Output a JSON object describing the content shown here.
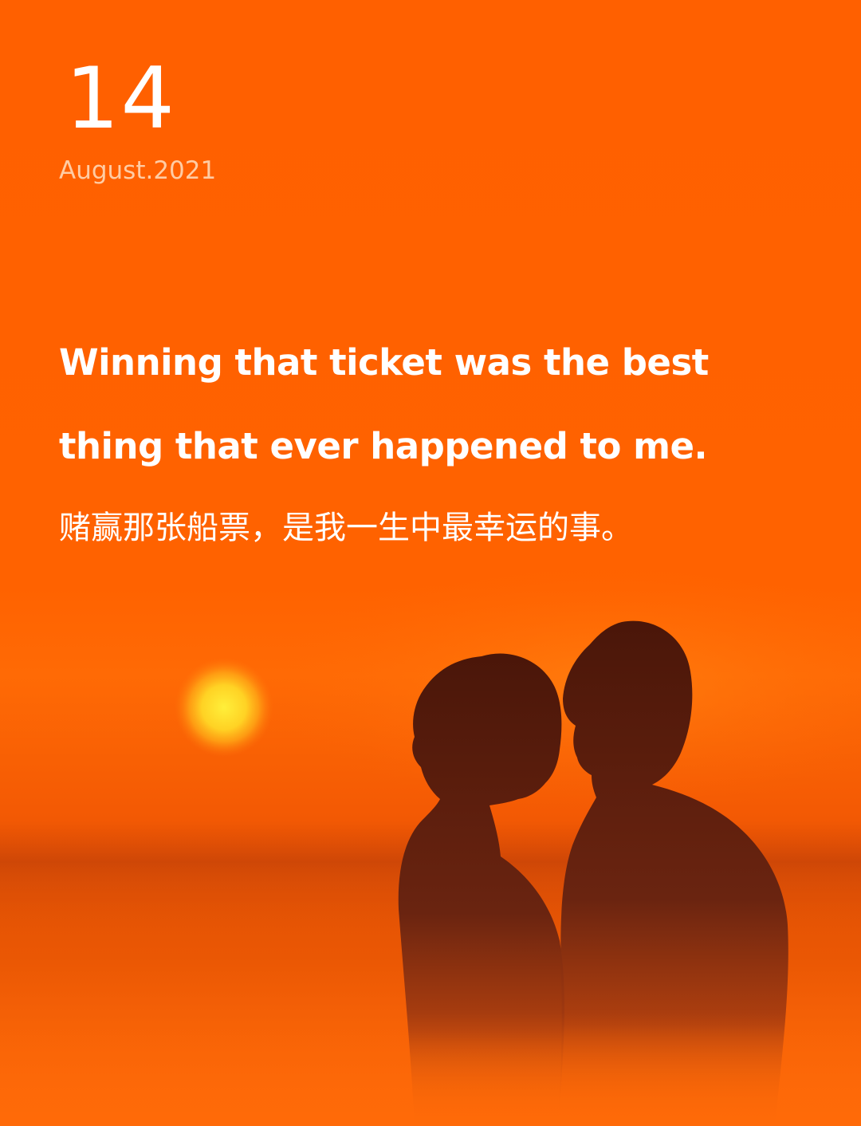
{
  "date": {
    "day": "14",
    "month_year": "August.2021"
  },
  "quote": {
    "english_line_1": "Winning that ticket was the best",
    "english_line_2": "thing that ever happened to me.",
    "chinese": "赌赢那张船票，是我一生中最幸运的事。"
  },
  "colors": {
    "background": "#ff6200",
    "text": "#ffffff",
    "sun": "#ffd52e",
    "silhouette": "#5a1e0c"
  }
}
